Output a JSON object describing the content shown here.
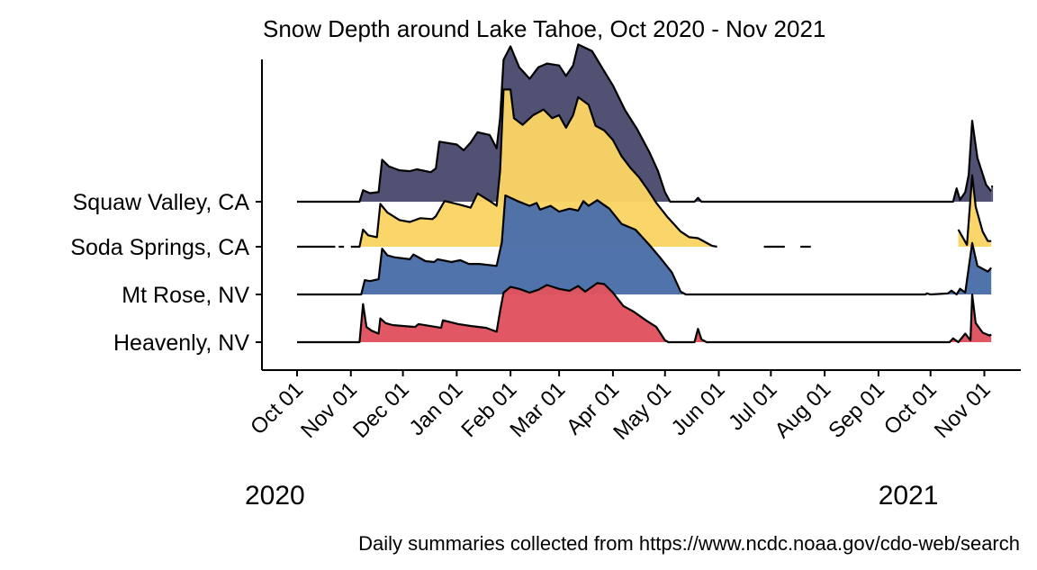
{
  "chart_data": {
    "type": "area",
    "subtype": "ridgeline",
    "title": "Snow Depth around Lake Tahoe, Oct 2020 - Nov 2021",
    "caption": "Daily summaries collected from https://www.ncdc.noaa.gov/cdo-web/search",
    "xlabel": "",
    "ylabel": "",
    "x_tick_labels": [
      "Oct 01",
      "Nov 01",
      "Dec 01",
      "Jan 01",
      "Feb 01",
      "Mar 01",
      "Apr 01",
      "May 01",
      "Jun 01",
      "Jul 01",
      "Aug 01",
      "Sep 01",
      "Oct 01",
      "Nov 01"
    ],
    "x_tick_dates": [
      "2020-10-01",
      "2020-11-01",
      "2020-12-01",
      "2021-01-01",
      "2021-02-01",
      "2021-03-01",
      "2021-04-01",
      "2021-05-01",
      "2021-06-01",
      "2021-07-01",
      "2021-08-01",
      "2021-09-01",
      "2021-10-01",
      "2021-11-01"
    ],
    "year_labels": [
      {
        "label": "2020",
        "date": "2020-10-01"
      },
      {
        "label": "2021",
        "date": "2021-10-01"
      }
    ],
    "xlim": [
      "2020-10-01",
      "2021-11-06"
    ],
    "grid": false,
    "legend": "none",
    "series": [
      {
        "name": "Heavenly, NV",
        "color": "#e0535f",
        "segments": [
          [
            [
              "2020-10-01",
              0
            ],
            [
              "2020-11-06",
              0
            ],
            [
              "2020-11-08",
              4
            ],
            [
              "2020-11-10",
              1.6
            ],
            [
              "2020-11-13",
              1.2
            ],
            [
              "2020-11-17",
              0.9
            ],
            [
              "2020-11-18",
              2.5
            ],
            [
              "2020-11-21",
              2.0
            ],
            [
              "2020-11-25",
              1.8
            ],
            [
              "2020-12-01",
              1.7
            ],
            [
              "2020-12-08",
              1.6
            ],
            [
              "2020-12-10",
              1.9
            ],
            [
              "2020-12-20",
              1.6
            ],
            [
              "2020-12-23",
              1.5
            ],
            [
              "2020-12-24",
              2.3
            ],
            [
              "2021-01-02",
              1.9
            ],
            [
              "2021-01-09",
              1.7
            ],
            [
              "2021-01-18",
              1.5
            ],
            [
              "2021-01-24",
              1.1
            ],
            [
              "2021-01-26",
              3.3
            ],
            [
              "2021-01-28",
              5.2
            ],
            [
              "2021-02-01",
              5.8
            ],
            [
              "2021-02-06",
              5.6
            ],
            [
              "2021-02-12",
              5.2
            ],
            [
              "2021-02-17",
              5.5
            ],
            [
              "2021-02-22",
              6.0
            ],
            [
              "2021-03-01",
              5.6
            ],
            [
              "2021-03-07",
              5.4
            ],
            [
              "2021-03-12",
              5.9
            ],
            [
              "2021-03-16",
              5.3
            ],
            [
              "2021-03-23",
              6.2
            ],
            [
              "2021-03-27",
              6.1
            ],
            [
              "2021-04-01",
              5.2
            ],
            [
              "2021-04-07",
              3.8
            ],
            [
              "2021-04-13",
              3.2
            ],
            [
              "2021-04-20",
              2.3
            ],
            [
              "2021-04-26",
              1.6
            ],
            [
              "2021-05-01",
              0.2
            ],
            [
              "2021-05-03",
              0
            ],
            [
              "2021-05-18",
              0
            ],
            [
              "2021-05-20",
              1.4
            ],
            [
              "2021-05-22",
              0.3
            ],
            [
              "2021-05-25",
              0
            ],
            [
              "2021-09-20",
              0
            ],
            [
              "2021-10-01",
              0
            ],
            [
              "2021-10-12",
              0
            ],
            [
              "2021-10-14",
              0.4
            ],
            [
              "2021-10-17",
              0
            ],
            [
              "2021-10-21",
              0.9
            ],
            [
              "2021-10-24",
              0.2
            ],
            [
              "2021-10-25",
              5.0
            ],
            [
              "2021-10-27",
              2.0
            ],
            [
              "2021-10-31",
              1.0
            ],
            [
              "2021-11-04",
              0.7
            ],
            [
              "2021-11-05",
              0.8
            ]
          ]
        ]
      },
      {
        "name": "Mt Rose, NV",
        "color": "#4a6ea8",
        "segments": [
          [
            [
              "2020-10-01",
              0
            ],
            [
              "2020-11-07",
              0
            ],
            [
              "2020-11-09",
              1.5
            ],
            [
              "2020-11-12",
              1.4
            ],
            [
              "2020-11-17",
              1.6
            ],
            [
              "2020-11-19",
              4.8
            ],
            [
              "2020-11-22",
              4.1
            ],
            [
              "2020-11-26",
              3.9
            ],
            [
              "2020-12-05",
              3.7
            ],
            [
              "2020-12-07",
              4.2
            ],
            [
              "2020-12-14",
              3.5
            ],
            [
              "2020-12-19",
              3.4
            ],
            [
              "2020-12-21",
              3.7
            ],
            [
              "2020-12-29",
              3.4
            ],
            [
              "2021-01-03",
              3.6
            ],
            [
              "2021-01-08",
              3.2
            ],
            [
              "2021-01-14",
              3.2
            ],
            [
              "2021-01-24",
              3.0
            ],
            [
              "2021-01-27",
              5.5
            ],
            [
              "2021-01-29",
              10.4
            ],
            [
              "2021-02-05",
              9.8
            ],
            [
              "2021-02-12",
              9.3
            ],
            [
              "2021-02-16",
              9.6
            ],
            [
              "2021-02-18",
              8.9
            ],
            [
              "2021-02-24",
              9.3
            ],
            [
              "2021-03-01",
              8.7
            ],
            [
              "2021-03-07",
              9.0
            ],
            [
              "2021-03-12",
              8.8
            ],
            [
              "2021-03-15",
              9.8
            ],
            [
              "2021-03-18",
              9.3
            ],
            [
              "2021-03-23",
              9.9
            ],
            [
              "2021-03-30",
              9.0
            ],
            [
              "2021-04-06",
              7.4
            ],
            [
              "2021-04-14",
              6.8
            ],
            [
              "2021-04-22",
              5.2
            ],
            [
              "2021-04-28",
              3.9
            ],
            [
              "2021-05-05",
              2.3
            ],
            [
              "2021-05-10",
              0.3
            ],
            [
              "2021-05-13",
              0
            ],
            [
              "2021-09-28",
              0
            ],
            [
              "2021-09-29",
              0.1
            ],
            [
              "2021-10-01",
              0
            ],
            [
              "2021-10-11",
              0.1
            ],
            [
              "2021-10-13",
              0.4
            ],
            [
              "2021-10-16",
              0
            ],
            [
              "2021-10-18",
              0.6
            ],
            [
              "2021-10-21",
              0.2
            ],
            [
              "2021-10-25",
              5.4
            ],
            [
              "2021-10-28",
              3.0
            ],
            [
              "2021-11-01",
              2.6
            ],
            [
              "2021-11-03",
              2.4
            ],
            [
              "2021-11-05",
              2.8
            ]
          ]
        ]
      },
      {
        "name": "Soda Springs, CA",
        "color": "#f9d465",
        "segments": [
          [
            [
              "2020-10-01",
              0
            ],
            [
              "2020-10-23",
              0
            ]
          ],
          [
            [
              "2020-10-25",
              0
            ],
            [
              "2020-10-28",
              0
            ]
          ],
          [
            [
              "2020-11-01",
              0
            ],
            [
              "2020-11-06",
              0
            ],
            [
              "2020-11-08",
              1.8
            ],
            [
              "2020-11-11",
              1.2
            ],
            [
              "2020-11-16",
              1.0
            ],
            [
              "2020-11-18",
              4.5
            ],
            [
              "2020-11-22",
              3.6
            ],
            [
              "2020-11-29",
              2.8
            ],
            [
              "2020-12-05",
              2.6
            ],
            [
              "2020-12-11",
              3.0
            ],
            [
              "2020-12-18",
              2.9
            ],
            [
              "2020-12-20",
              3.2
            ],
            [
              "2020-12-25",
              4.8
            ],
            [
              "2021-01-03",
              4.4
            ],
            [
              "2021-01-09",
              4.1
            ],
            [
              "2021-01-13",
              5.6
            ],
            [
              "2021-01-20",
              4.8
            ],
            [
              "2021-01-24",
              4.3
            ],
            [
              "2021-01-26",
              8.0
            ],
            [
              "2021-01-28",
              16.5
            ],
            [
              "2021-02-01",
              16.5
            ],
            [
              "2021-02-03",
              13.5
            ],
            [
              "2021-02-08",
              12.8
            ],
            [
              "2021-02-14",
              13.8
            ],
            [
              "2021-02-20",
              14.4
            ],
            [
              "2021-02-25",
              13.5
            ],
            [
              "2021-03-01",
              13.8
            ],
            [
              "2021-03-05",
              12.5
            ],
            [
              "2021-03-09",
              13.8
            ],
            [
              "2021-03-12",
              15.7
            ],
            [
              "2021-03-18",
              14.9
            ],
            [
              "2021-03-22",
              12.7
            ],
            [
              "2021-03-27",
              12.2
            ],
            [
              "2021-04-01",
              11.2
            ],
            [
              "2021-04-06",
              9.5
            ],
            [
              "2021-04-11",
              8.3
            ],
            [
              "2021-04-16",
              7.3
            ],
            [
              "2021-04-21",
              6.0
            ],
            [
              "2021-04-26",
              4.6
            ],
            [
              "2021-05-02",
              3.2
            ],
            [
              "2021-05-10",
              1.6
            ],
            [
              "2021-05-15",
              1.0
            ],
            [
              "2021-05-20",
              0.9
            ],
            [
              "2021-05-28",
              0.1
            ],
            [
              "2021-05-31",
              0
            ]
          ],
          [
            [
              "2021-06-27",
              0
            ],
            [
              "2021-07-09",
              0
            ]
          ],
          [
            [
              "2021-07-18",
              0
            ],
            [
              "2021-07-24",
              0
            ]
          ],
          [
            [
              "2021-10-17",
              1.8
            ],
            [
              "2021-10-22",
              0.2
            ],
            [
              "2021-10-25",
              7.5
            ],
            [
              "2021-10-27",
              4.2
            ],
            [
              "2021-10-31",
              1.6
            ],
            [
              "2021-11-03",
              0.6
            ],
            [
              "2021-11-05",
              0.6
            ]
          ]
        ]
      },
      {
        "name": "Squaw Valley, CA",
        "color": "#4b4b6e",
        "segments": [
          [
            [
              "2020-10-01",
              0
            ],
            [
              "2020-11-06",
              0
            ],
            [
              "2020-11-08",
              1.2
            ],
            [
              "2020-11-12",
              0.9
            ],
            [
              "2020-11-17",
              1.0
            ],
            [
              "2020-11-19",
              4.4
            ],
            [
              "2020-11-23",
              3.7
            ],
            [
              "2020-11-29",
              3.3
            ],
            [
              "2020-12-05",
              3.2
            ],
            [
              "2020-12-09",
              3.4
            ],
            [
              "2020-12-17",
              3.1
            ],
            [
              "2020-12-20",
              3.5
            ],
            [
              "2020-12-22",
              6.3
            ],
            [
              "2021-01-01",
              6.0
            ],
            [
              "2021-01-05",
              5.4
            ],
            [
              "2021-01-09",
              6.2
            ],
            [
              "2021-01-13",
              7.3
            ],
            [
              "2021-01-20",
              7.0
            ],
            [
              "2021-01-24",
              5.6
            ],
            [
              "2021-01-26",
              8.8
            ],
            [
              "2021-01-28",
              14.9
            ],
            [
              "2021-02-01",
              16.3
            ],
            [
              "2021-02-06",
              14.1
            ],
            [
              "2021-02-12",
              12.9
            ],
            [
              "2021-02-17",
              14.1
            ],
            [
              "2021-02-22",
              14.5
            ],
            [
              "2021-03-01",
              14.3
            ],
            [
              "2021-03-05",
              13.2
            ],
            [
              "2021-03-09",
              14.3
            ],
            [
              "2021-03-12",
              16.5
            ],
            [
              "2021-03-20",
              15.8
            ],
            [
              "2021-03-26",
              14.0
            ],
            [
              "2021-04-01",
              12.2
            ],
            [
              "2021-04-08",
              9.6
            ],
            [
              "2021-04-15",
              7.6
            ],
            [
              "2021-04-22",
              5.2
            ],
            [
              "2021-04-27",
              3.2
            ],
            [
              "2021-05-01",
              1.0
            ],
            [
              "2021-05-04",
              0
            ],
            [
              "2021-05-18",
              0
            ],
            [
              "2021-05-20",
              0.4
            ],
            [
              "2021-05-22",
              0
            ],
            [
              "2021-10-14",
              0
            ],
            [
              "2021-10-16",
              1.4
            ],
            [
              "2021-10-18",
              0.2
            ],
            [
              "2021-10-21",
              1.0
            ],
            [
              "2021-10-23",
              2.8
            ],
            [
              "2021-10-25",
              8.5
            ],
            [
              "2021-10-28",
              4.6
            ],
            [
              "2021-11-02",
              1.8
            ],
            [
              "2021-11-05",
              1.1
            ]
          ],
          [
            [
              "2021-11-05",
              1.6
            ],
            [
              "2021-11-06",
              1.6
            ]
          ]
        ]
      }
    ]
  }
}
